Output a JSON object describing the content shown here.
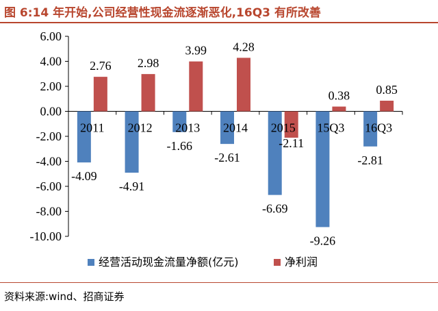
{
  "header": {
    "title": "图 6:14 年开始,公司经营性现金流逐渐恶化,16Q3 有所改善"
  },
  "footer": {
    "source": "资料来源:wind、招商证券"
  },
  "chart_data": {
    "type": "bar",
    "categories": [
      "2011",
      "2012",
      "2013",
      "2014",
      "2015",
      "15Q3",
      "16Q3"
    ],
    "series": [
      {
        "name": "经营活动现金流量净额(亿元)",
        "color": "#4f81bd",
        "values": [
          -4.09,
          -4.91,
          -1.66,
          -2.61,
          -6.69,
          -9.26,
          -2.81
        ]
      },
      {
        "name": "净利润",
        "color": "#c0504d",
        "values": [
          2.76,
          2.98,
          3.99,
          4.28,
          -2.11,
          0.38,
          0.85
        ]
      }
    ],
    "data_labels": [
      [
        "-4.09",
        "-4.91",
        "-1.66",
        "-2.61",
        "-6.69",
        "-9.26",
        "-2.81"
      ],
      [
        "2.76",
        "2.98",
        "3.99",
        "4.28",
        "-2.11",
        "0.38",
        "0.85"
      ]
    ],
    "yticks": [
      "6.00",
      "4.00",
      "2.00",
      "0.00",
      "-2.00",
      "-4.00",
      "-6.00",
      "-8.00",
      "-10.00"
    ],
    "ylim": [
      -10,
      6
    ],
    "grid": false,
    "legend_position": "bottom"
  }
}
